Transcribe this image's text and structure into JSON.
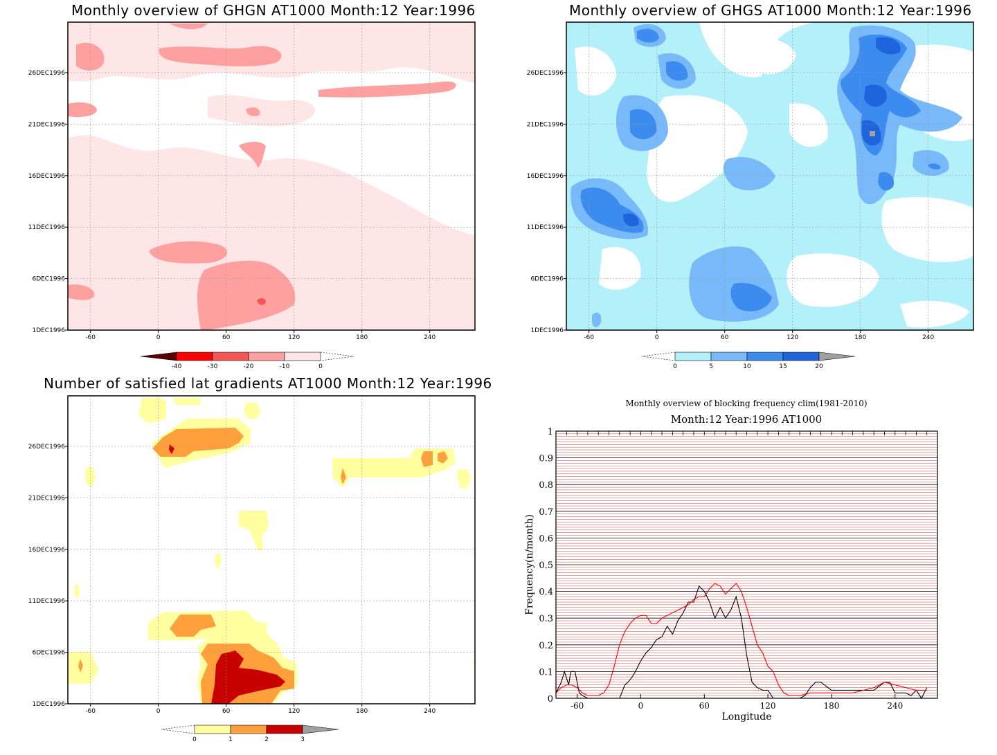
{
  "panels": {
    "ghgn": {
      "title": "Monthly overview of GHGN AT1000 Month:12 Year:1996"
    },
    "ghgs": {
      "title": "Monthly overview of GHGS AT1000 Month:12 Year:1996"
    },
    "grad": {
      "title": "Number of satisfied lat gradients AT1000 Month:12 Year:1996"
    },
    "freq": {
      "title": "Monthly overview of blocking frequency clim(1981-2010)",
      "subtitle": "Month:12 Year:1996  AT1000"
    }
  },
  "chart_data": [
    {
      "type": "heatmap",
      "title": "Monthly overview of GHGN AT1000 Month:12 Year:1996",
      "x_ticks": [
        "-60",
        "0",
        "60",
        "120",
        "180",
        "240"
      ],
      "y_ticks": [
        "1DEC1996",
        "6DEC1996",
        "11DEC1996",
        "16DEC1996",
        "21DEC1996",
        "26DEC1996"
      ],
      "xlim": [
        -80,
        280
      ],
      "colorbar": {
        "labels": [
          "-40",
          "-30",
          "-20",
          "-10",
          "0"
        ],
        "colors": [
          "#5a0000",
          "#ff0000",
          "#f55555",
          "#ffa0a0",
          "#ffe6e6"
        ]
      }
    },
    {
      "type": "heatmap",
      "title": "Monthly overview of GHGS AT1000 Month:12 Year:1996",
      "x_ticks": [
        "-60",
        "0",
        "60",
        "120",
        "180",
        "240"
      ],
      "y_ticks": [
        "1DEC1996",
        "6DEC1996",
        "11DEC1996",
        "16DEC1996",
        "21DEC1996",
        "26DEC1996"
      ],
      "xlim": [
        -80,
        280
      ],
      "colorbar": {
        "labels": [
          "0",
          "5",
          "10",
          "15",
          "20"
        ],
        "colors": [
          "#b4f0fa",
          "#78b9fa",
          "#3c8cf0",
          "#1e64dc",
          "#a0a0a0"
        ]
      }
    },
    {
      "type": "heatmap",
      "title": "Number of satisfied lat gradients AT1000 Month:12 Year:1996",
      "x_ticks": [
        "-60",
        "0",
        "60",
        "120",
        "180",
        "240"
      ],
      "y_ticks": [
        "1DEC1996",
        "6DEC1996",
        "11DEC1996",
        "16DEC1996",
        "21DEC1996",
        "26DEC1996"
      ],
      "xlim": [
        -80,
        280
      ],
      "colorbar": {
        "labels": [
          "0",
          "1",
          "2",
          "3"
        ],
        "colors": [
          "#ffff9f",
          "#ffa03c",
          "#c80000",
          "#a0a0a0"
        ]
      }
    },
    {
      "type": "line",
      "title": "Monthly overview of blocking frequency clim(1981-2010)",
      "subtitle": "Month:12 Year:1996  AT1000",
      "xlabel": "Longitude",
      "ylabel": "Frequency(n/month)",
      "x_ticks": [
        "-60",
        "0",
        "60",
        "120",
        "180",
        "240"
      ],
      "y_ticks": [
        "0",
        "0.1",
        "0.2",
        "0.3",
        "0.4",
        "0.5",
        "0.6",
        "0.7",
        "0.8",
        "0.9",
        "1"
      ],
      "xlim": [
        -80,
        280
      ],
      "ylim": [
        0,
        1
      ],
      "grid": true,
      "colors": {
        "black_series": "#000000",
        "red_series": "#ff0000",
        "grid_minor": "#c04040"
      },
      "series": [
        {
          "x": [
            -80,
            -75,
            -72,
            -68,
            -66,
            -62,
            -58,
            -55,
            -50,
            -40,
            -30,
            -20,
            -18,
            -15,
            -12,
            -8,
            -5,
            0,
            5,
            10,
            15,
            20,
            25,
            30,
            35,
            40,
            45,
            50,
            55,
            60,
            65,
            70,
            75,
            80,
            85,
            90,
            95,
            100,
            105,
            110,
            115,
            120,
            125,
            130,
            140,
            150,
            155,
            160,
            165,
            170,
            180,
            190,
            200,
            210,
            220,
            230,
            235,
            240,
            245,
            250,
            255,
            260,
            265,
            270
          ],
          "y": [
            0.02,
            0.06,
            0.1,
            0.05,
            0.1,
            0.1,
            0.02,
            0.01,
            0.0,
            0.0,
            0.0,
            0.0,
            0.02,
            0.05,
            0.06,
            0.08,
            0.1,
            0.14,
            0.17,
            0.19,
            0.22,
            0.23,
            0.27,
            0.24,
            0.29,
            0.32,
            0.36,
            0.36,
            0.42,
            0.4,
            0.36,
            0.3,
            0.34,
            0.3,
            0.33,
            0.38,
            0.3,
            0.16,
            0.06,
            0.04,
            0.03,
            0.03,
            0.0,
            0.0,
            0.0,
            0.0,
            0.01,
            0.04,
            0.06,
            0.06,
            0.03,
            0.03,
            0.03,
            0.03,
            0.03,
            0.06,
            0.06,
            0.02,
            0.02,
            0.02,
            0.01,
            0.03,
            0.0,
            0.04
          ]
        },
        {
          "x": [
            -80,
            -75,
            -70,
            -65,
            -60,
            -55,
            -50,
            -45,
            -40,
            -35,
            -30,
            -25,
            -20,
            -15,
            -10,
            -5,
            0,
            5,
            10,
            15,
            20,
            25,
            30,
            35,
            40,
            45,
            50,
            55,
            60,
            65,
            70,
            75,
            80,
            85,
            90,
            95,
            100,
            105,
            110,
            115,
            120,
            125,
            130,
            135,
            140,
            150,
            160,
            170,
            180,
            200,
            220,
            230,
            240,
            250,
            260,
            270
          ],
          "y": [
            0.02,
            0.04,
            0.05,
            0.05,
            0.04,
            0.02,
            0.01,
            0.01,
            0.01,
            0.02,
            0.05,
            0.12,
            0.2,
            0.25,
            0.28,
            0.3,
            0.31,
            0.31,
            0.28,
            0.28,
            0.3,
            0.31,
            0.32,
            0.33,
            0.34,
            0.35,
            0.37,
            0.38,
            0.38,
            0.41,
            0.43,
            0.42,
            0.39,
            0.41,
            0.43,
            0.4,
            0.34,
            0.27,
            0.2,
            0.17,
            0.12,
            0.1,
            0.05,
            0.02,
            0.01,
            0.01,
            0.02,
            0.02,
            0.02,
            0.02,
            0.04,
            0.06,
            0.05,
            0.04,
            0.03,
            0.03
          ]
        }
      ]
    }
  ]
}
